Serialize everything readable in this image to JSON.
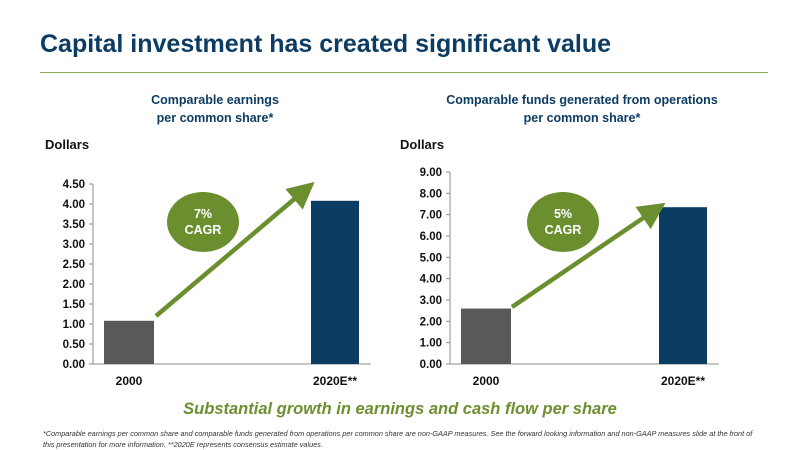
{
  "header": {
    "title": "Capital investment has created significant value"
  },
  "chart_data": [
    {
      "type": "bar",
      "title": "Comparable earnings\nper common share*",
      "ylabel": "Dollars",
      "categories": [
        "2000",
        "2020E**"
      ],
      "values": [
        1.08,
        4.08
      ],
      "ylim": [
        0,
        4.5
      ],
      "ytick_step": 0.5,
      "tick_labels": [
        "0.00",
        "0.50",
        "1.00",
        "1.50",
        "2.00",
        "2.50",
        "3.00",
        "3.50",
        "4.00",
        "4.50"
      ],
      "bar_colors": [
        "#58595b",
        "#0b3d63"
      ],
      "grid": false,
      "annotation": {
        "lines": [
          "7%",
          "CAGR"
        ],
        "color": "#6b8e2e",
        "arrow_color": "#6b8e2e"
      }
    },
    {
      "type": "bar",
      "title": "Comparable funds generated from operations\nper common share*",
      "ylabel": "Dollars",
      "categories": [
        "2000",
        "2020E**"
      ],
      "values": [
        2.6,
        7.35
      ],
      "ylim": [
        0,
        9
      ],
      "ytick_step": 1,
      "tick_labels": [
        "0.00",
        "1.00",
        "2.00",
        "3.00",
        "4.00",
        "5.00",
        "6.00",
        "7.00",
        "8.00",
        "9.00"
      ],
      "bar_colors": [
        "#58595b",
        "#0b3d63"
      ],
      "grid": false,
      "annotation": {
        "lines": [
          "5%",
          "CAGR"
        ],
        "color": "#6b8e2e",
        "arrow_color": "#6b8e2e"
      }
    }
  ],
  "tagline": "Substantial growth in earnings and cash flow per share",
  "footnote": "*Comparable earnings per common share and comparable funds generated from operations per common share are non-GAAP measures. See the forward looking information and non-GAAP measures slide at the front of this presentation for more information. **2020E represents consensus estimate values."
}
